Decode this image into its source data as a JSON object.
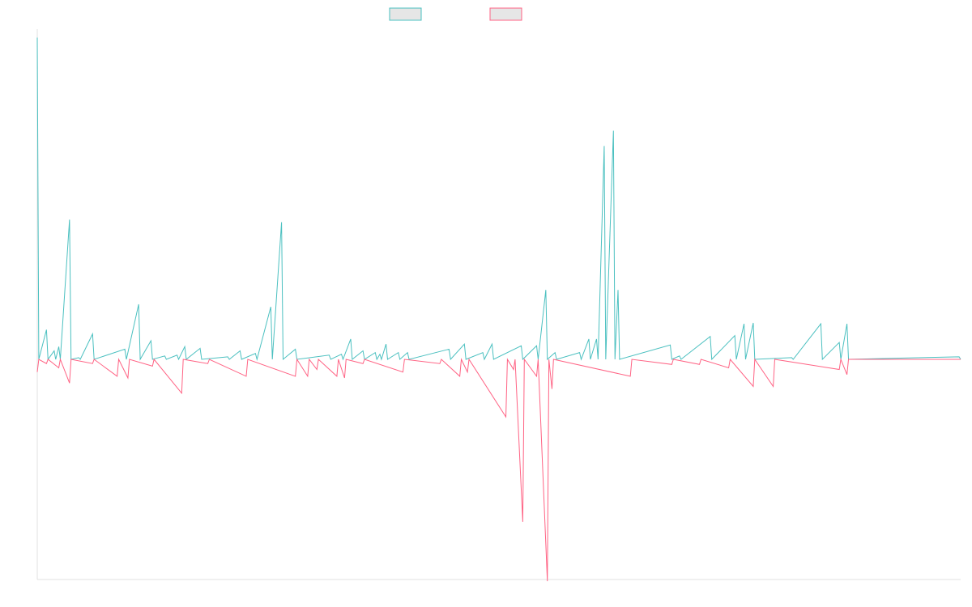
{
  "chart_data": {
    "type": "line",
    "title": "",
    "xlabel": "",
    "ylabel": "",
    "ylim": [
      -2.6,
      3.9
    ],
    "legend": "top-center",
    "grid": false,
    "colors": {
      "series_a": "#4bc0c0",
      "series_b": "#ff6384",
      "legend_fill": "#e6e6e6",
      "axis": "#e0e0e0"
    },
    "series": [
      {
        "name": "",
        "color": "#4bc0c0",
        "points": [
          [
            0,
            3.8
          ],
          [
            1,
            0
          ],
          [
            6,
            0.35
          ],
          [
            7,
            0
          ],
          [
            11,
            0.1
          ],
          [
            12,
            0
          ],
          [
            14,
            0.15
          ],
          [
            15,
            0
          ],
          [
            21,
            1.65
          ],
          [
            22,
            0
          ],
          [
            27,
            0.02
          ],
          [
            28,
            0
          ],
          [
            36,
            0.3
          ],
          [
            37,
            0
          ],
          [
            57,
            0.12
          ],
          [
            58,
            0
          ],
          [
            66,
            0.65
          ],
          [
            67,
            0
          ],
          [
            74,
            0.22
          ],
          [
            75,
            0
          ],
          [
            83,
            0.04
          ],
          [
            84,
            0
          ],
          [
            91,
            0.05
          ],
          [
            92,
            0
          ],
          [
            96,
            0.15
          ],
          [
            97,
            0
          ],
          [
            106,
            0.13
          ],
          [
            107,
            0
          ],
          [
            124,
            0.03
          ],
          [
            125,
            0
          ],
          [
            132,
            0.1
          ],
          [
            133,
            0
          ],
          [
            142,
            0.07
          ],
          [
            143,
            0
          ],
          [
            152,
            0.62
          ],
          [
            153,
            0
          ],
          [
            159,
            1.62
          ],
          [
            160,
            0
          ],
          [
            168,
            0.12
          ],
          [
            169,
            0
          ],
          [
            190,
            0.05
          ],
          [
            191,
            0
          ],
          [
            198,
            0.06
          ],
          [
            199,
            0
          ],
          [
            204,
            0.24
          ],
          [
            205,
            0
          ],
          [
            212,
            0.1
          ],
          [
            213,
            0
          ],
          [
            220,
            0.08
          ],
          [
            221,
            0
          ],
          [
            223,
            0.06
          ],
          [
            224,
            0
          ],
          [
            227,
            0.18
          ],
          [
            228,
            0
          ],
          [
            235,
            0.08
          ],
          [
            236,
            0
          ],
          [
            241,
            0.08
          ],
          [
            242,
            0
          ],
          [
            268,
            0.12
          ],
          [
            269,
            0
          ],
          [
            278,
            0.18
          ],
          [
            279,
            0
          ],
          [
            290,
            0.08
          ],
          [
            291,
            0
          ],
          [
            296,
            0.18
          ],
          [
            297,
            0
          ],
          [
            315,
            0.16
          ],
          [
            316,
            0
          ],
          [
            325,
            0.16
          ],
          [
            326,
            0
          ],
          [
            331,
            0.82
          ],
          [
            332,
            0
          ],
          [
            337,
            0.08
          ],
          [
            338,
            0
          ],
          [
            353,
            0.08
          ],
          [
            354,
            0
          ],
          [
            359,
            0.24
          ],
          [
            360,
            0
          ],
          [
            364,
            0.24
          ],
          [
            365,
            0
          ],
          [
            369,
            2.52
          ],
          [
            370,
            0
          ],
          [
            375,
            2.7
          ],
          [
            376,
            0
          ],
          [
            378,
            0.82
          ],
          [
            379,
            0
          ],
          [
            412,
            0.17
          ],
          [
            413,
            0
          ],
          [
            418,
            0.04
          ],
          [
            419,
            0
          ],
          [
            438,
            0.27
          ],
          [
            439,
            0
          ],
          [
            454,
            0.28
          ],
          [
            455,
            0
          ],
          [
            460,
            0.42
          ],
          [
            461,
            0
          ],
          [
            466,
            0.43
          ],
          [
            467,
            0
          ],
          [
            491,
            0.02
          ],
          [
            492,
            0
          ],
          [
            510,
            0.42
          ],
          [
            511,
            0
          ],
          [
            522,
            0.2
          ],
          [
            523,
            0
          ],
          [
            527,
            0.42
          ],
          [
            528,
            0
          ],
          [
            600,
            0.03
          ],
          [
            601,
            0
          ]
        ]
      },
      {
        "name": "",
        "color": "#ff6384",
        "points": [
          [
            0,
            -0.15
          ],
          [
            1,
            0
          ],
          [
            6,
            -0.05
          ],
          [
            7,
            0
          ],
          [
            14,
            -0.1
          ],
          [
            15,
            0
          ],
          [
            21,
            -0.28
          ],
          [
            22,
            0
          ],
          [
            36,
            -0.05
          ],
          [
            37,
            0
          ],
          [
            52,
            -0.2
          ],
          [
            53,
            0
          ],
          [
            59,
            -0.22
          ],
          [
            60,
            0
          ],
          [
            75,
            -0.08
          ],
          [
            76,
            0
          ],
          [
            94,
            -0.4
          ],
          [
            95,
            0
          ],
          [
            111,
            -0.05
          ],
          [
            112,
            0
          ],
          [
            136,
            -0.2
          ],
          [
            137,
            0
          ],
          [
            168,
            -0.2
          ],
          [
            169,
            0
          ],
          [
            176,
            -0.2
          ],
          [
            177,
            0
          ],
          [
            182,
            -0.12
          ],
          [
            183,
            0
          ],
          [
            195,
            -0.2
          ],
          [
            196,
            0
          ],
          [
            200,
            -0.22
          ],
          [
            201,
            0
          ],
          [
            212,
            -0.05
          ],
          [
            213,
            0
          ],
          [
            238,
            -0.15
          ],
          [
            239,
            0
          ],
          [
            262,
            -0.05
          ],
          [
            263,
            0
          ],
          [
            275,
            -0.2
          ],
          [
            276,
            0
          ],
          [
            280,
            -0.15
          ],
          [
            281,
            0
          ],
          [
            305,
            -0.68
          ],
          [
            306,
            0
          ],
          [
            310,
            -0.12
          ],
          [
            311,
            0
          ],
          [
            316,
            -1.92
          ],
          [
            317,
            0
          ],
          [
            325,
            -0.2
          ],
          [
            326,
            0
          ],
          [
            332,
            -2.62
          ],
          [
            333,
            0
          ],
          [
            335,
            -0.35
          ],
          [
            336,
            0
          ],
          [
            386,
            -0.2
          ],
          [
            387,
            0
          ],
          [
            413,
            -0.06
          ],
          [
            414,
            0
          ],
          [
            431,
            -0.06
          ],
          [
            432,
            0
          ],
          [
            450,
            -0.1
          ],
          [
            451,
            0
          ],
          [
            466,
            -0.32
          ],
          [
            467,
            0
          ],
          [
            479,
            -0.32
          ],
          [
            480,
            0
          ],
          [
            522,
            -0.12
          ],
          [
            523,
            0
          ],
          [
            527,
            -0.18
          ],
          [
            528,
            0
          ]
        ]
      }
    ]
  }
}
